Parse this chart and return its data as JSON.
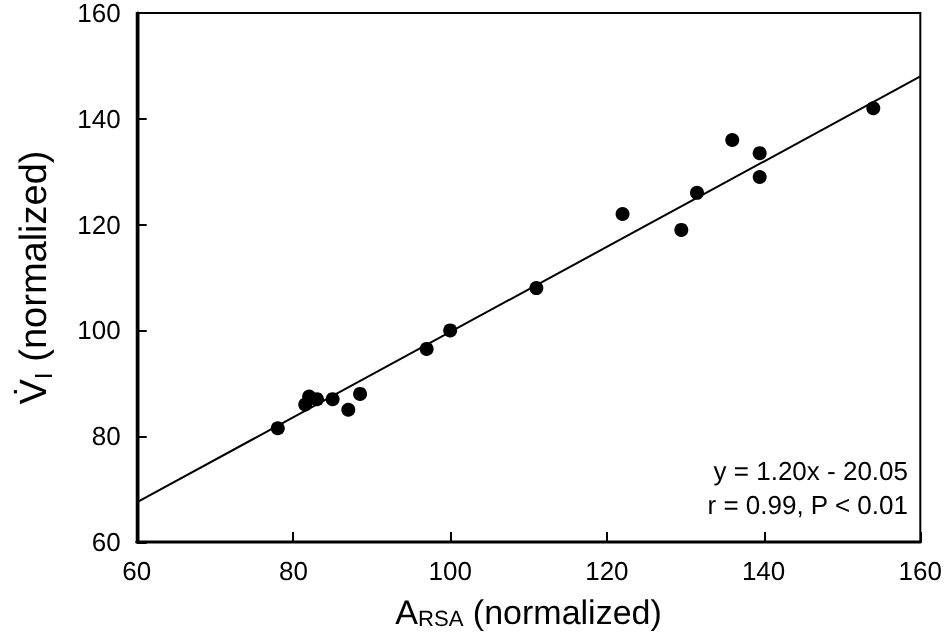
{
  "chart_data": {
    "type": "scatter",
    "xlabel": "A$_{RSA}$ (normalized)",
    "ylabel": "V̇$_{I}$ (normalized)",
    "series": [
      {
        "color": "#000000",
        "marker": "circle",
        "x": [
          78,
          81.5,
          82,
          83,
          85,
          87,
          88.5,
          97,
          100,
          111,
          122,
          129.5,
          131.5,
          136,
          139.5,
          139.5,
          154
        ],
        "values": [
          81.5,
          86,
          87.5,
          87,
          87,
          85,
          88,
          96.5,
          100,
          108,
          122,
          119,
          126,
          136,
          133.5,
          129,
          142
        ]
      },
      {
        "type": "line",
        "color": "#000000",
        "marker": "none",
        "x": [
          60,
          160
        ],
        "values": [
          67.5,
          148
        ]
      }
    ],
    "xlim": [
      60,
      160
    ],
    "xticks": [
      60,
      80,
      100,
      120,
      140,
      160
    ],
    "ylim": [
      60,
      160
    ],
    "yticks": [
      60,
      80,
      100,
      120,
      140,
      160
    ],
    "annotations": [
      "y = 1.20x - 20.05",
      "r = 0.99, P < 0.01"
    ],
    "grid": false
  }
}
